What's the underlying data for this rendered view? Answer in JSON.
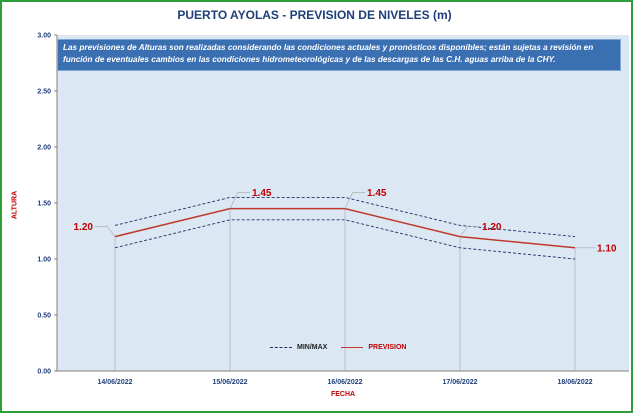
{
  "title": "PUERTO AYOLAS - PREVISION DE NIVELES (m)",
  "note": "Las previsiones de Alturas son realizadas considerando las condiciones actuales y pronósticos disponibles; están sujetas a revisión en función de eventuales cambios en las condiciones hidrometeorológicas y de las descargas de las C.H. aguas arriba de la CHY.",
  "colors": {
    "frame": "#2e9e3a",
    "plot_bg": "#dbe8f4",
    "note_bg": "#3a6fb2",
    "prevision": "#c0392b",
    "minmax": "#1f2f6a",
    "title": "#1f3f7a",
    "axis_label": "#c00000"
  },
  "chart_data": {
    "type": "line",
    "title": "PUERTO AYOLAS - PREVISION DE NIVELES (m)",
    "xlabel": "FECHA",
    "ylabel": "ALTURA",
    "categories": [
      "14/06/2022",
      "15/06/2022",
      "16/06/2022",
      "17/06/2022",
      "18/06/2022"
    ],
    "ylim": [
      0,
      3
    ],
    "yticks": [
      "0.00",
      "0.50",
      "1.00",
      "1.50",
      "2.00",
      "2.50",
      "3.00"
    ],
    "grid": false,
    "legend_position": "bottom-center",
    "series": [
      {
        "name": "PREVISION",
        "values": [
          1.2,
          1.45,
          1.45,
          1.2,
          1.1
        ],
        "labels": [
          "1.20",
          "1.45",
          "1.45",
          "1.20",
          "1.10"
        ]
      },
      {
        "name": "MIN/MAX",
        "role": "max",
        "values": [
          1.3,
          1.55,
          1.55,
          1.3,
          1.2
        ]
      },
      {
        "name": "MIN/MAX",
        "role": "min",
        "values": [
          1.1,
          1.35,
          1.35,
          1.1,
          1.0
        ]
      }
    ],
    "legend": [
      "MIN/MAX",
      "PREVISION"
    ]
  }
}
